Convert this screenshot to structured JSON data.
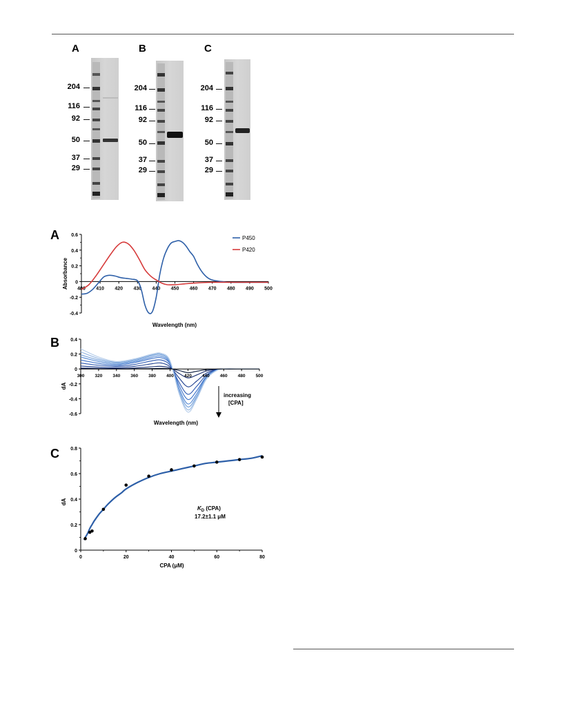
{
  "gels": {
    "panels": [
      {
        "label": "A"
      },
      {
        "label": "B"
      },
      {
        "label": "C"
      }
    ],
    "markers": [
      "204",
      "116",
      "92",
      "50",
      "37",
      "29"
    ]
  },
  "figure_labels": {
    "a": "A",
    "b": "B",
    "c": "C"
  },
  "chart_data": [
    {
      "type": "line",
      "panel": "A",
      "xlabel": "Wavelength (nm)",
      "ylabel": "Absorbance",
      "xlim": [
        400,
        500
      ],
      "ylim": [
        -0.4,
        0.6
      ],
      "xticks": [
        "400",
        "410",
        "420",
        "430",
        "440",
        "450",
        "460",
        "470",
        "480",
        "490",
        "500"
      ],
      "yticks": [
        "-0.4",
        "-0.2",
        "0",
        "0.2",
        "0.4",
        "0.6"
      ],
      "legend_position": "top-right",
      "series": [
        {
          "name": "P450",
          "color": "#2d5fa8",
          "x": [
            400,
            403,
            406,
            409,
            412,
            415,
            418,
            421,
            424,
            427,
            430,
            432,
            434,
            436,
            438,
            440,
            442,
            444,
            446,
            448,
            450,
            452,
            454,
            456,
            458,
            460,
            462,
            464,
            466,
            468,
            470,
            472,
            475,
            480,
            490,
            500
          ],
          "y": [
            -0.16,
            -0.15,
            -0.1,
            -0.02,
            0.06,
            0.08,
            0.07,
            0.05,
            0.04,
            0.03,
            0.01,
            -0.1,
            -0.3,
            -0.4,
            -0.38,
            -0.2,
            0.1,
            0.3,
            0.42,
            0.49,
            0.51,
            0.52,
            0.5,
            0.45,
            0.38,
            0.32,
            0.22,
            0.14,
            0.08,
            0.04,
            0.02,
            0.01,
            0.0,
            -0.01,
            -0.01,
            -0.01
          ]
        },
        {
          "name": "P420",
          "color": "#d63a3a",
          "x": [
            400,
            404,
            408,
            412,
            416,
            419,
            422,
            425,
            428,
            431,
            434,
            437,
            440,
            443,
            446,
            450,
            455,
            460,
            470,
            480,
            490,
            500
          ],
          "y": [
            -0.1,
            -0.04,
            0.08,
            0.22,
            0.36,
            0.45,
            0.5,
            0.48,
            0.4,
            0.28,
            0.15,
            0.07,
            0.02,
            -0.02,
            -0.04,
            -0.04,
            -0.03,
            -0.02,
            -0.01,
            -0.01,
            -0.01,
            -0.01
          ]
        }
      ]
    },
    {
      "type": "line",
      "panel": "B",
      "xlabel": "Wavelength (nm)",
      "ylabel": "dA",
      "xlim": [
        300,
        500
      ],
      "ylim": [
        -0.6,
        0.4
      ],
      "xticks": [
        "300",
        "320",
        "340",
        "360",
        "380",
        "400",
        "420",
        "440",
        "460",
        "480",
        "500"
      ],
      "yticks": [
        "-0.6",
        "-0.4",
        "-0.2",
        "0",
        "0.2",
        "0.4"
      ],
      "annotation": [
        "increasing",
        "[CPA]"
      ],
      "x": [
        300,
        320,
        340,
        360,
        380,
        390,
        400,
        410,
        420,
        430,
        440,
        450,
        460,
        480,
        500
      ],
      "series": [
        {
          "color": "#0b1b3d",
          "y": [
            0.003,
            0.002,
            0.001,
            0.002,
            0.006,
            0.008,
            0.004,
            -0.02,
            -0.05,
            -0.03,
            -0.01,
            -0.003,
            0,
            0,
            0
          ]
        },
        {
          "color": "#13296b",
          "y": [
            0.012,
            0.008,
            0.006,
            0.012,
            0.03,
            0.035,
            0.015,
            -0.06,
            -0.12,
            -0.08,
            -0.03,
            -0.008,
            0,
            0,
            0
          ]
        },
        {
          "color": "#1e3f8f",
          "y": [
            0.04,
            0.025,
            0.018,
            0.035,
            0.07,
            0.08,
            0.03,
            -0.12,
            -0.24,
            -0.16,
            -0.06,
            -0.015,
            0,
            0,
            0
          ]
        },
        {
          "color": "#2a56b0",
          "y": [
            0.08,
            0.05,
            0.035,
            0.06,
            0.11,
            0.12,
            0.05,
            -0.18,
            -0.34,
            -0.23,
            -0.09,
            -0.02,
            0,
            0,
            0
          ]
        },
        {
          "color": "#3a70c8",
          "y": [
            0.12,
            0.075,
            0.05,
            0.085,
            0.14,
            0.15,
            0.07,
            -0.22,
            -0.41,
            -0.29,
            -0.11,
            -0.025,
            0,
            0,
            0
          ]
        },
        {
          "color": "#5388d4",
          "y": [
            0.16,
            0.1,
            0.065,
            0.1,
            0.16,
            0.17,
            0.08,
            -0.26,
            -0.47,
            -0.33,
            -0.12,
            -0.03,
            0,
            0,
            0
          ]
        },
        {
          "color": "#709ed9",
          "y": [
            0.19,
            0.12,
            0.08,
            0.115,
            0.18,
            0.19,
            0.09,
            -0.29,
            -0.51,
            -0.36,
            -0.13,
            -0.03,
            0,
            0,
            0
          ]
        },
        {
          "color": "#93b6e3",
          "y": [
            0.23,
            0.14,
            0.09,
            0.125,
            0.19,
            0.2,
            0.1,
            -0.31,
            -0.55,
            -0.38,
            -0.14,
            -0.035,
            0,
            0,
            0
          ]
        },
        {
          "color": "#b3cbe9",
          "y": [
            0.27,
            0.16,
            0.1,
            0.135,
            0.2,
            0.21,
            0.11,
            -0.33,
            -0.58,
            -0.4,
            -0.15,
            -0.035,
            0,
            0,
            0
          ]
        }
      ]
    },
    {
      "type": "scatter",
      "panel": "C",
      "xlabel": "CPA (μM)",
      "ylabel": "dA",
      "xlim": [
        0,
        80
      ],
      "ylim": [
        0,
        0.8
      ],
      "xticks": [
        "0",
        "20",
        "40",
        "60",
        "80"
      ],
      "yticks": [
        "0",
        "0.2",
        "0.4",
        "0.6",
        "0.8"
      ],
      "annotation": {
        "kd_symbol": "K",
        "kd_sub": "D",
        "kd_label": " (CPA)",
        "kd_value": "17.2±1.1 μM"
      },
      "points": {
        "x": [
          2,
          4,
          5,
          10,
          20,
          30,
          40,
          50,
          60,
          70,
          80
        ],
        "y": [
          0.09,
          0.14,
          0.15,
          0.32,
          0.51,
          0.58,
          0.63,
          0.66,
          0.69,
          0.71,
          0.73
        ]
      },
      "fit": {
        "color": "#2d5fa8",
        "x": [
          1.5,
          2,
          3,
          4,
          5,
          6,
          8,
          10,
          12,
          15,
          18,
          20,
          25,
          30,
          35,
          40,
          45,
          50,
          55,
          60,
          65,
          70,
          75,
          80
        ],
        "y": [
          0.08,
          0.1,
          0.13,
          0.17,
          0.2,
          0.23,
          0.28,
          0.32,
          0.36,
          0.41,
          0.45,
          0.48,
          0.53,
          0.57,
          0.6,
          0.62,
          0.64,
          0.66,
          0.68,
          0.69,
          0.7,
          0.71,
          0.72,
          0.74
        ]
      }
    }
  ]
}
